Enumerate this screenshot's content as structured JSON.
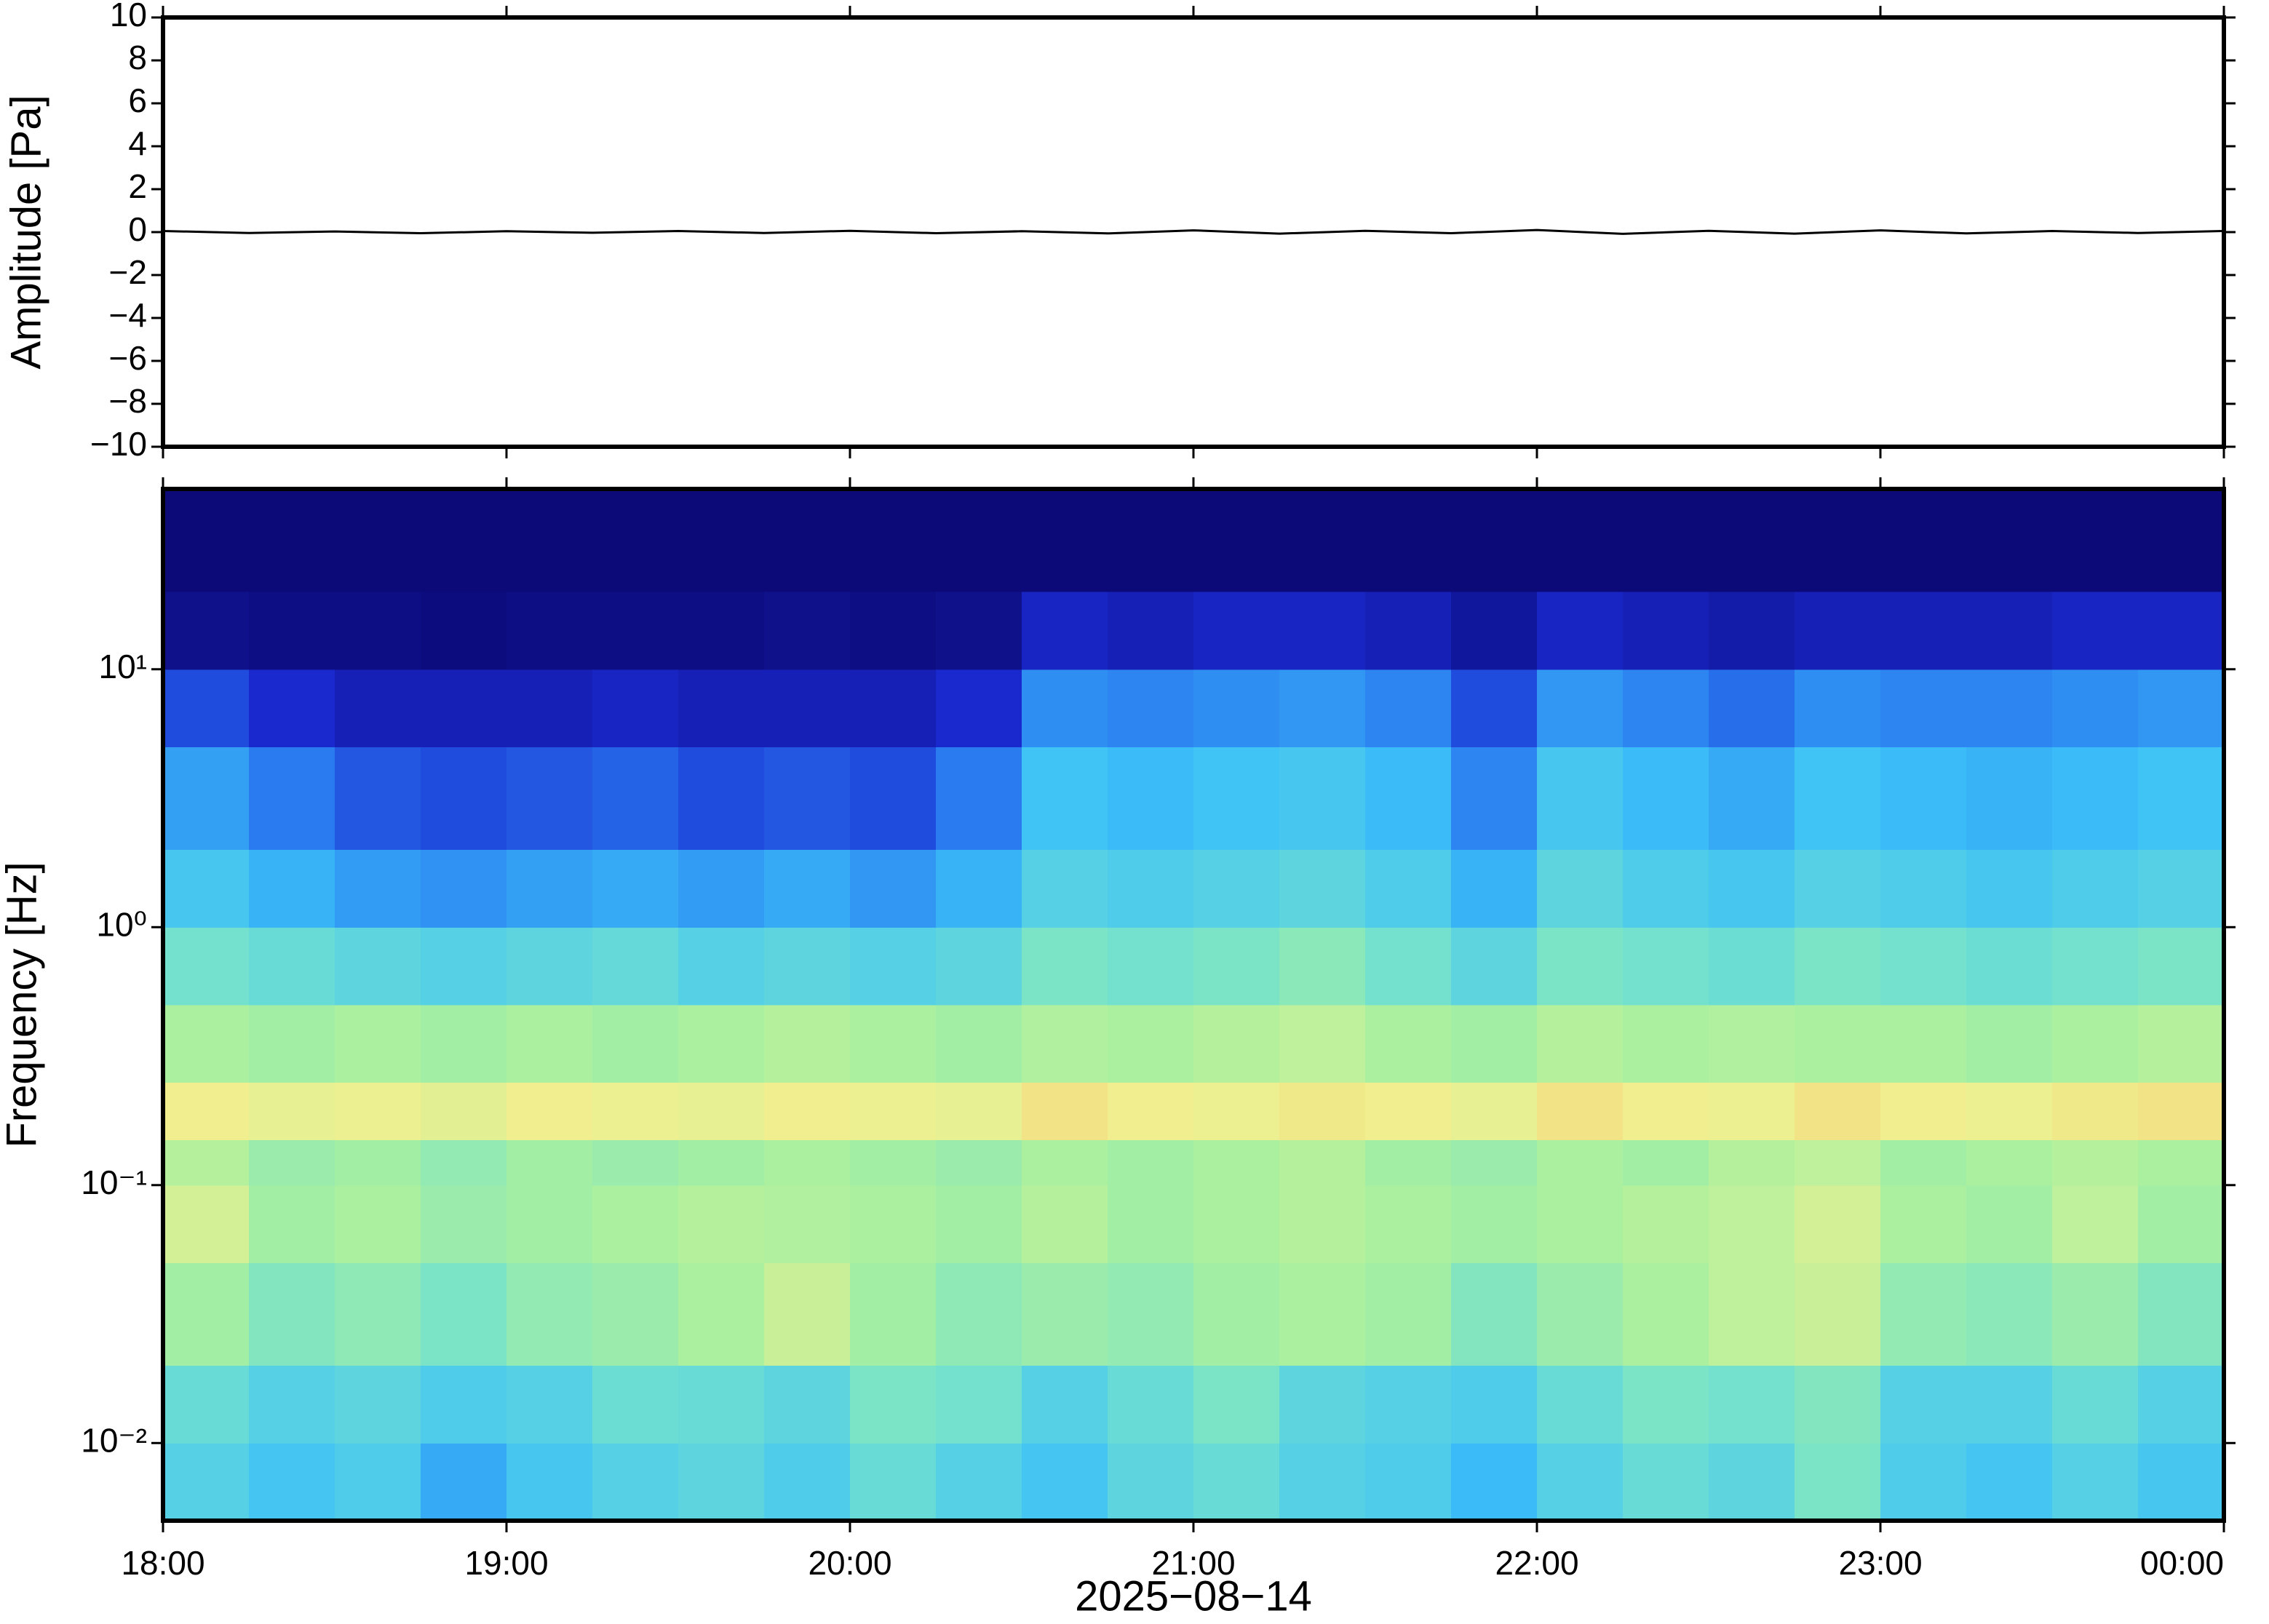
{
  "chart_data": [
    {
      "type": "line",
      "ylabel": "Amplitude [Pa]",
      "color": "#000000",
      "x": [
        18,
        18.25,
        18.5,
        18.75,
        19,
        19.25,
        19.5,
        19.75,
        20,
        20.25,
        20.5,
        20.75,
        21,
        21.25,
        21.5,
        21.75,
        22,
        22.25,
        22.5,
        22.75,
        23,
        23.25,
        23.5,
        23.75,
        24
      ],
      "values": [
        0.05,
        -0.04,
        0.03,
        -0.05,
        0.04,
        -0.03,
        0.05,
        -0.04,
        0.06,
        -0.05,
        0.04,
        -0.06,
        0.08,
        -0.07,
        0.06,
        -0.05,
        0.1,
        -0.08,
        0.06,
        -0.07,
        0.08,
        -0.06,
        0.05,
        -0.04,
        0.05
      ],
      "xlim": [
        18,
        24
      ],
      "xticks": [
        18,
        19,
        20,
        21,
        22,
        23,
        24
      ],
      "ylim": [
        -10,
        10
      ],
      "yticks": [
        {
          "value": -10,
          "label": "−10"
        },
        {
          "value": -8,
          "label": "−8"
        },
        {
          "value": -6,
          "label": "−6"
        },
        {
          "value": -4,
          "label": "−4"
        },
        {
          "value": -2,
          "label": "−2"
        },
        0,
        2,
        4,
        6,
        8,
        10
      ]
    },
    {
      "type": "heatmap",
      "ylabel": "Frequency [Hz]",
      "xlabel": "2025−08−14",
      "log_y": true,
      "xlim": [
        18,
        24
      ],
      "xticks": [
        {
          "value": 18,
          "label": "18:00"
        },
        {
          "value": 19,
          "label": "19:00"
        },
        {
          "value": 20,
          "label": "20:00"
        },
        {
          "value": 21,
          "label": "21:00"
        },
        {
          "value": 22,
          "label": "22:00"
        },
        {
          "value": 23,
          "label": "23:00"
        },
        {
          "value": 24,
          "label": "00:00"
        }
      ],
      "ylim": [
        0.005,
        50
      ],
      "yticks": [
        {
          "value": 0.01,
          "label": "10⁻²"
        },
        {
          "value": 0.1,
          "label": "10⁻¹"
        },
        {
          "value": 1,
          "label": "10⁰"
        },
        {
          "value": 10,
          "label": "10¹"
        }
      ],
      "clim": [
        0,
        1
      ],
      "colormap": [
        "#0b0a78",
        "#1a2ad0",
        "#2a7ef0",
        "#3cc0f8",
        "#70e0d0",
        "#a8f0a0",
        "#f0f090",
        "#f5a050"
      ],
      "xbins": [
        18,
        18.25,
        18.5,
        18.75,
        19,
        19.25,
        19.5,
        19.75,
        20,
        20.25,
        20.5,
        20.75,
        21,
        21.25,
        21.5,
        21.75,
        22,
        22.25,
        22.5,
        22.75,
        23,
        23.25,
        23.5,
        23.75,
        24
      ],
      "ybins": [
        0.005,
        0.01,
        0.02,
        0.05,
        0.1,
        0.15,
        0.25,
        0.5,
        1,
        2,
        5,
        10,
        20,
        50
      ],
      "values": [
        [
          0.5,
          0.45,
          0.48,
          0.38,
          0.46,
          0.5,
          0.52,
          0.48,
          0.55,
          0.5,
          0.45,
          0.52,
          0.55,
          0.5,
          0.48,
          0.42,
          0.5,
          0.55,
          0.52,
          0.6,
          0.48,
          0.45,
          0.5,
          0.46
        ],
        [
          0.55,
          0.5,
          0.52,
          0.48,
          0.5,
          0.56,
          0.55,
          0.52,
          0.6,
          0.58,
          0.5,
          0.55,
          0.6,
          0.52,
          0.5,
          0.48,
          0.55,
          0.6,
          0.58,
          0.62,
          0.5,
          0.5,
          0.55,
          0.5
        ],
        [
          0.7,
          0.62,
          0.65,
          0.6,
          0.66,
          0.68,
          0.72,
          0.78,
          0.7,
          0.65,
          0.68,
          0.66,
          0.7,
          0.72,
          0.7,
          0.62,
          0.68,
          0.72,
          0.76,
          0.78,
          0.66,
          0.64,
          0.68,
          0.62
        ],
        [
          0.8,
          0.7,
          0.72,
          0.68,
          0.7,
          0.72,
          0.74,
          0.73,
          0.72,
          0.7,
          0.74,
          0.7,
          0.72,
          0.74,
          0.72,
          0.7,
          0.72,
          0.74,
          0.76,
          0.8,
          0.72,
          0.7,
          0.76,
          0.7
        ],
        [
          0.74,
          0.68,
          0.7,
          0.66,
          0.7,
          0.68,
          0.7,
          0.72,
          0.7,
          0.68,
          0.72,
          0.7,
          0.72,
          0.74,
          0.7,
          0.68,
          0.72,
          0.7,
          0.74,
          0.76,
          0.7,
          0.72,
          0.74,
          0.72
        ],
        [
          0.86,
          0.84,
          0.85,
          0.83,
          0.86,
          0.85,
          0.84,
          0.86,
          0.85,
          0.84,
          0.88,
          0.86,
          0.85,
          0.87,
          0.86,
          0.84,
          0.88,
          0.86,
          0.85,
          0.88,
          0.86,
          0.85,
          0.87,
          0.88
        ],
        [
          0.72,
          0.7,
          0.72,
          0.7,
          0.72,
          0.7,
          0.72,
          0.74,
          0.72,
          0.7,
          0.73,
          0.72,
          0.74,
          0.76,
          0.72,
          0.7,
          0.74,
          0.72,
          0.73,
          0.72,
          0.72,
          0.7,
          0.72,
          0.74
        ],
        [
          0.58,
          0.55,
          0.52,
          0.5,
          0.52,
          0.54,
          0.5,
          0.52,
          0.5,
          0.52,
          0.6,
          0.58,
          0.6,
          0.64,
          0.58,
          0.52,
          0.6,
          0.58,
          0.56,
          0.6,
          0.58,
          0.56,
          0.58,
          0.6
        ],
        [
          0.46,
          0.4,
          0.35,
          0.33,
          0.36,
          0.38,
          0.35,
          0.38,
          0.34,
          0.4,
          0.5,
          0.48,
          0.5,
          0.52,
          0.48,
          0.4,
          0.52,
          0.48,
          0.46,
          0.5,
          0.48,
          0.46,
          0.48,
          0.5
        ],
        [
          0.36,
          0.28,
          0.22,
          0.2,
          0.22,
          0.24,
          0.2,
          0.22,
          0.2,
          0.28,
          0.44,
          0.42,
          0.44,
          0.46,
          0.42,
          0.3,
          0.46,
          0.42,
          0.38,
          0.44,
          0.42,
          0.4,
          0.42,
          0.44
        ],
        [
          0.2,
          0.14,
          0.1,
          0.1,
          0.1,
          0.12,
          0.1,
          0.1,
          0.1,
          0.14,
          0.32,
          0.3,
          0.32,
          0.34,
          0.3,
          0.2,
          0.34,
          0.3,
          0.26,
          0.32,
          0.3,
          0.3,
          0.32,
          0.34
        ],
        [
          0.03,
          0.02,
          0.02,
          0.01,
          0.02,
          0.02,
          0.02,
          0.03,
          0.02,
          0.03,
          0.12,
          0.1,
          0.12,
          0.12,
          0.1,
          0.06,
          0.12,
          0.1,
          0.08,
          0.1,
          0.1,
          0.1,
          0.12,
          0.12
        ],
        [
          0,
          0,
          0,
          0,
          0,
          0,
          0,
          0,
          0,
          0,
          0,
          0,
          0,
          0,
          0,
          0,
          0,
          0,
          0,
          0,
          0,
          0,
          0,
          0
        ]
      ]
    }
  ]
}
